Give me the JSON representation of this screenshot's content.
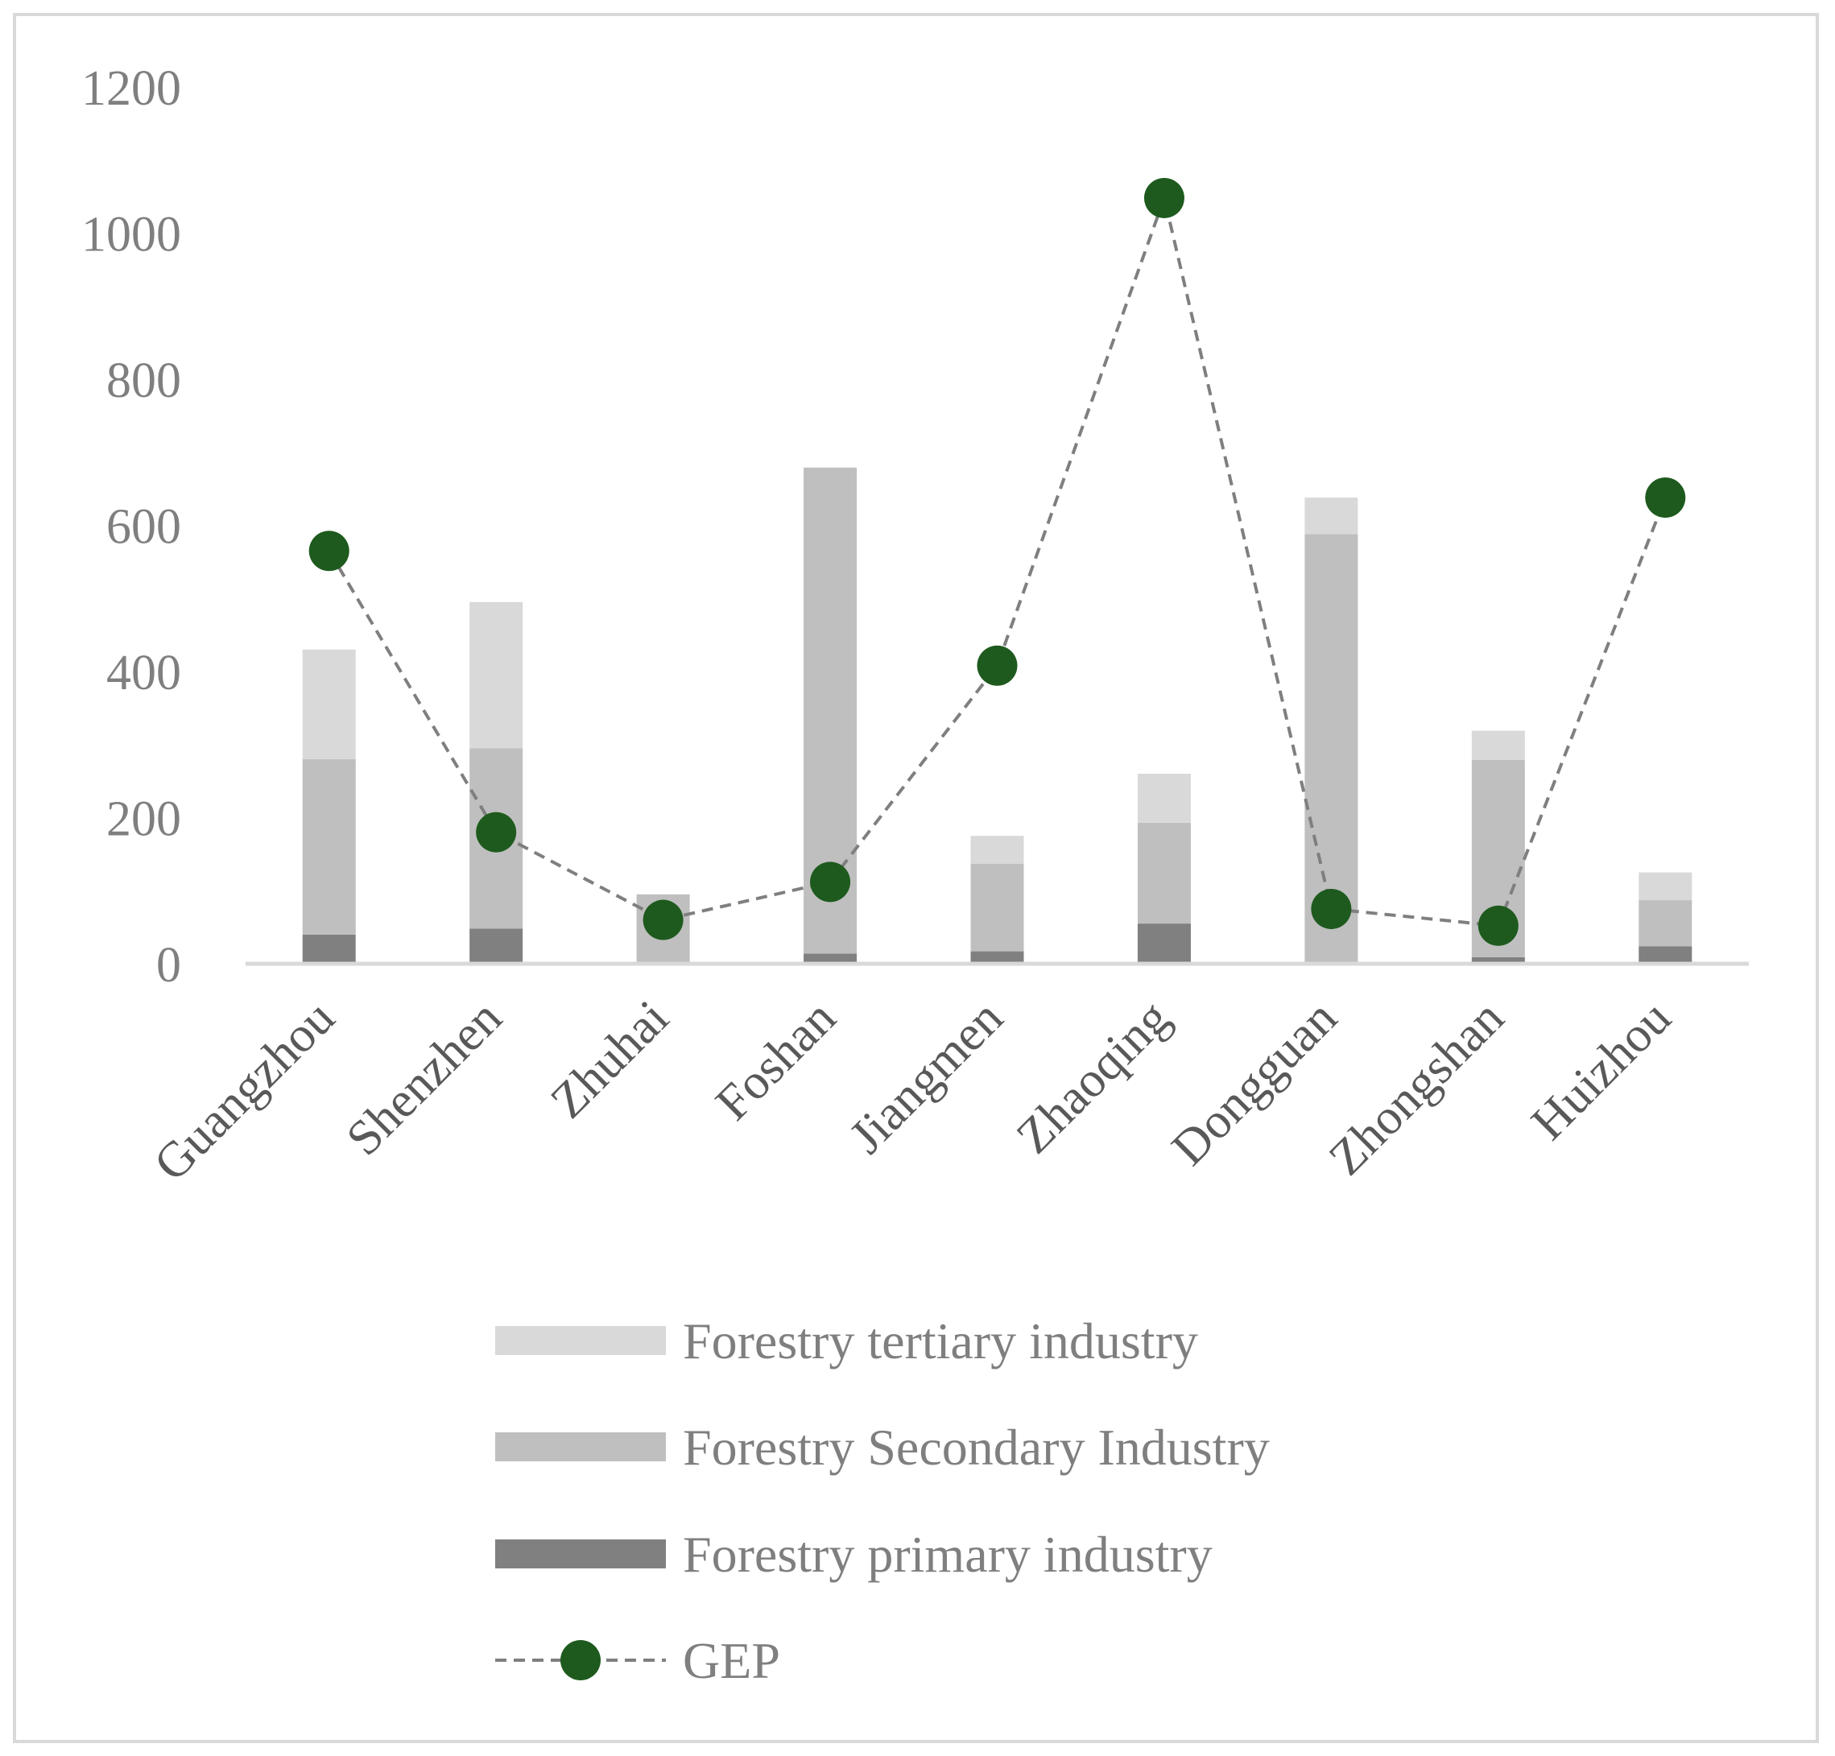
{
  "chart_data": {
    "type": "bar",
    "stacked": true,
    "categories": [
      "Guangzhou",
      "Shenzhen",
      "Zhuhai",
      "Foshan",
      "Jiangmen",
      "Zhaoqing",
      "Dongguan",
      "Zhongshan",
      "Huizhou"
    ],
    "series": [
      {
        "name": "Forestry primary industry",
        "kind": "bar",
        "color": "#808080",
        "values": [
          40,
          48,
          0,
          14,
          17,
          55,
          0,
          9,
          24
        ]
      },
      {
        "name": "Forestry Secondary Industry",
        "kind": "bar",
        "color": "#bfbfbf",
        "values": [
          240,
          247,
          95,
          665,
          120,
          138,
          588,
          270,
          63
        ]
      },
      {
        "name": "Forestry tertiary industry",
        "kind": "bar",
        "color": "#d9d9d9",
        "values": [
          150,
          200,
          0,
          0,
          38,
          67,
          50,
          40,
          38
        ]
      },
      {
        "name": "GEP",
        "kind": "line",
        "color": "#1e5a1e",
        "line_color": "#7f7f7f",
        "values": [
          565,
          180,
          60,
          112,
          408,
          1048,
          75,
          52,
          638
        ]
      }
    ],
    "y_ticks": [
      "0",
      "200",
      "400",
      "600",
      "800",
      "1000",
      "1200"
    ],
    "ylim": [
      0,
      1200
    ],
    "legend_position": "bottom",
    "legend_order": [
      "Forestry tertiary industry",
      "Forestry Secondary Industry",
      "Forestry primary industry",
      "GEP"
    ],
    "title": "",
    "xlabel": "",
    "ylabel": ""
  }
}
